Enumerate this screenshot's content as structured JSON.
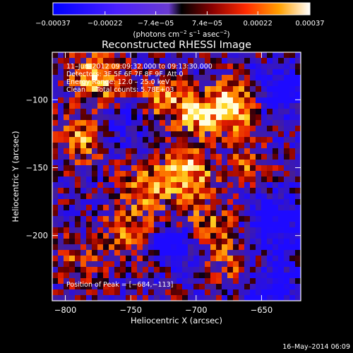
{
  "chart_data": {
    "type": "heatmap",
    "title": "Reconstructed RHESSI Image",
    "xlabel": "Heliocentric X (arcsec)",
    "ylabel": "Heliocentric Y (arcsec)",
    "xlim": [
      -810,
      -620
    ],
    "ylim": [
      -248,
      -65
    ],
    "x_ticks": [
      -800,
      -750,
      -700,
      -650
    ],
    "x_tick_labels": [
      "−800",
      "−750",
      "−700",
      "−650"
    ],
    "y_ticks": [
      -100,
      -150,
      -200
    ],
    "y_tick_labels": [
      "−100",
      "−150",
      "−200"
    ],
    "colorbar": {
      "range": [
        -0.00037,
        0.00037
      ],
      "ticks": [
        -0.00037,
        -0.00022,
        -7.4e-05,
        7.4e-05,
        0.00022,
        0.00037
      ],
      "tick_labels": [
        "−0.00037",
        "−0.00022",
        "−7.4e−05",
        "7.4e−05",
        "0.00022",
        "0.00037"
      ],
      "units_main": "(photons cm",
      "units_exp1": "−2",
      "units_mid": " s",
      "units_exp2": "−1",
      "units_end": " asec",
      "units_exp3": "−2",
      "units_close": ")"
    },
    "peak_x": -684,
    "peak_y": -113,
    "grid_cols": 44,
    "grid_rows": 44
  },
  "annotations": {
    "time_range": "11–Jun–2012 09:09:32.000 to 09:13:30.000",
    "detectors": "Detectors: 3F 5F 6F 7F 8F 9F, Att 0",
    "energy_range": "Energy Range: 12.0 – 25.0 keV",
    "clean_counts": "Clean     Total counts: 5.78E+03",
    "peak_position": "Position of Peak = [−684,−113]"
  },
  "footer": {
    "timestamp": "16–May–2014 06:09"
  },
  "colors": {
    "background": "#000000",
    "frame": "#ffffff"
  }
}
